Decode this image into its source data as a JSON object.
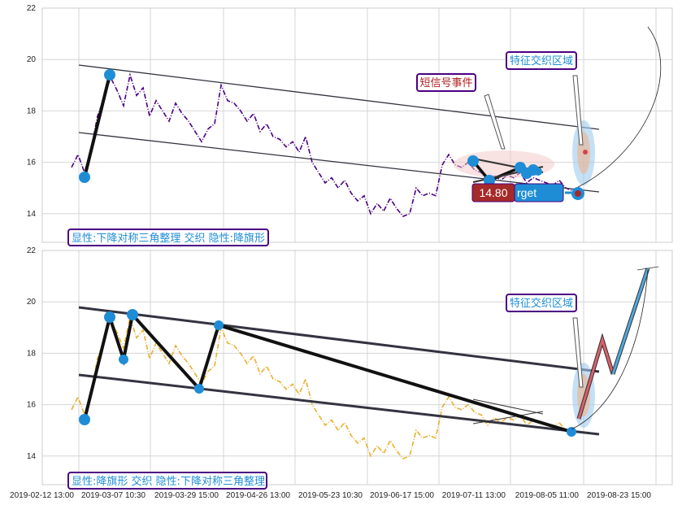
{
  "chart_data": [
    {
      "type": "line",
      "panel": "top",
      "ylim": [
        13,
        22
      ],
      "yticks": [
        14,
        16,
        18,
        20,
        22
      ],
      "grid": true,
      "series_color": "#4b0082",
      "line_style": "dash-dot",
      "values": [
        15.8,
        16.3,
        15.6,
        16.5,
        17.8,
        18.5,
        19.3,
        18.8,
        18.2,
        19.4,
        18.6,
        18.9,
        17.8,
        18.4,
        18.0,
        17.6,
        18.3,
        17.9,
        17.6,
        17.2,
        16.8,
        17.3,
        17.5,
        19.0,
        18.4,
        18.3,
        18.0,
        17.6,
        17.9,
        17.2,
        17.5,
        17.0,
        16.9,
        16.6,
        16.8,
        16.4,
        17.0,
        16.0,
        15.6,
        15.2,
        15.4,
        15.0,
        15.3,
        14.8,
        14.5,
        14.7,
        14.0,
        14.4,
        14.1,
        14.6,
        14.2,
        13.9,
        14.0,
        15.0,
        14.7,
        14.8,
        14.7,
        15.9,
        16.3,
        15.9,
        15.8,
        16.0,
        15.7,
        15.6,
        15.2,
        15.5,
        15.3,
        15.5,
        15.4,
        15.6,
        15.2,
        15.4,
        15.3,
        15.2,
        15.1,
        15.3,
        15.0,
        14.9
      ],
      "legend_box": "显性:下降对称三角整理 交织 隐性:降旗形",
      "annotations": {
        "short_signal": "短信号事件",
        "feature_zone": "特征交织区域",
        "target_value": "14.80",
        "target_label": "rget"
      }
    },
    {
      "type": "line",
      "panel": "bottom",
      "ylim": [
        13,
        22
      ],
      "yticks": [
        14,
        16,
        18,
        20,
        22
      ],
      "grid": true,
      "series_color": "#e8b030",
      "line_style": "dash-dot",
      "legend_box": "显性:降旗形 交织 隐性:下降对称三角整理",
      "annotations": {
        "feature_zone": "特征交织区域"
      }
    }
  ],
  "x_ticks": [
    "2019-02-12 13:00",
    "2019-03-07 10:30",
    "2019-03-29 15:00",
    "2019-04-26 13:00",
    "2019-05-23 10:30",
    "2019-06-17 15:00",
    "2019-07-11 13:00",
    "2019-08-05 11:00",
    "2019-08-23 15:00"
  ],
  "colors": {
    "marker": "#1f8dd6",
    "pattern_line": "#111111",
    "channel": "#333340",
    "callout_border": "#4b0082",
    "callout_text_blue": "#1f8dd6",
    "callout_text_red": "#b22222",
    "target_red": "#a52a2a"
  }
}
